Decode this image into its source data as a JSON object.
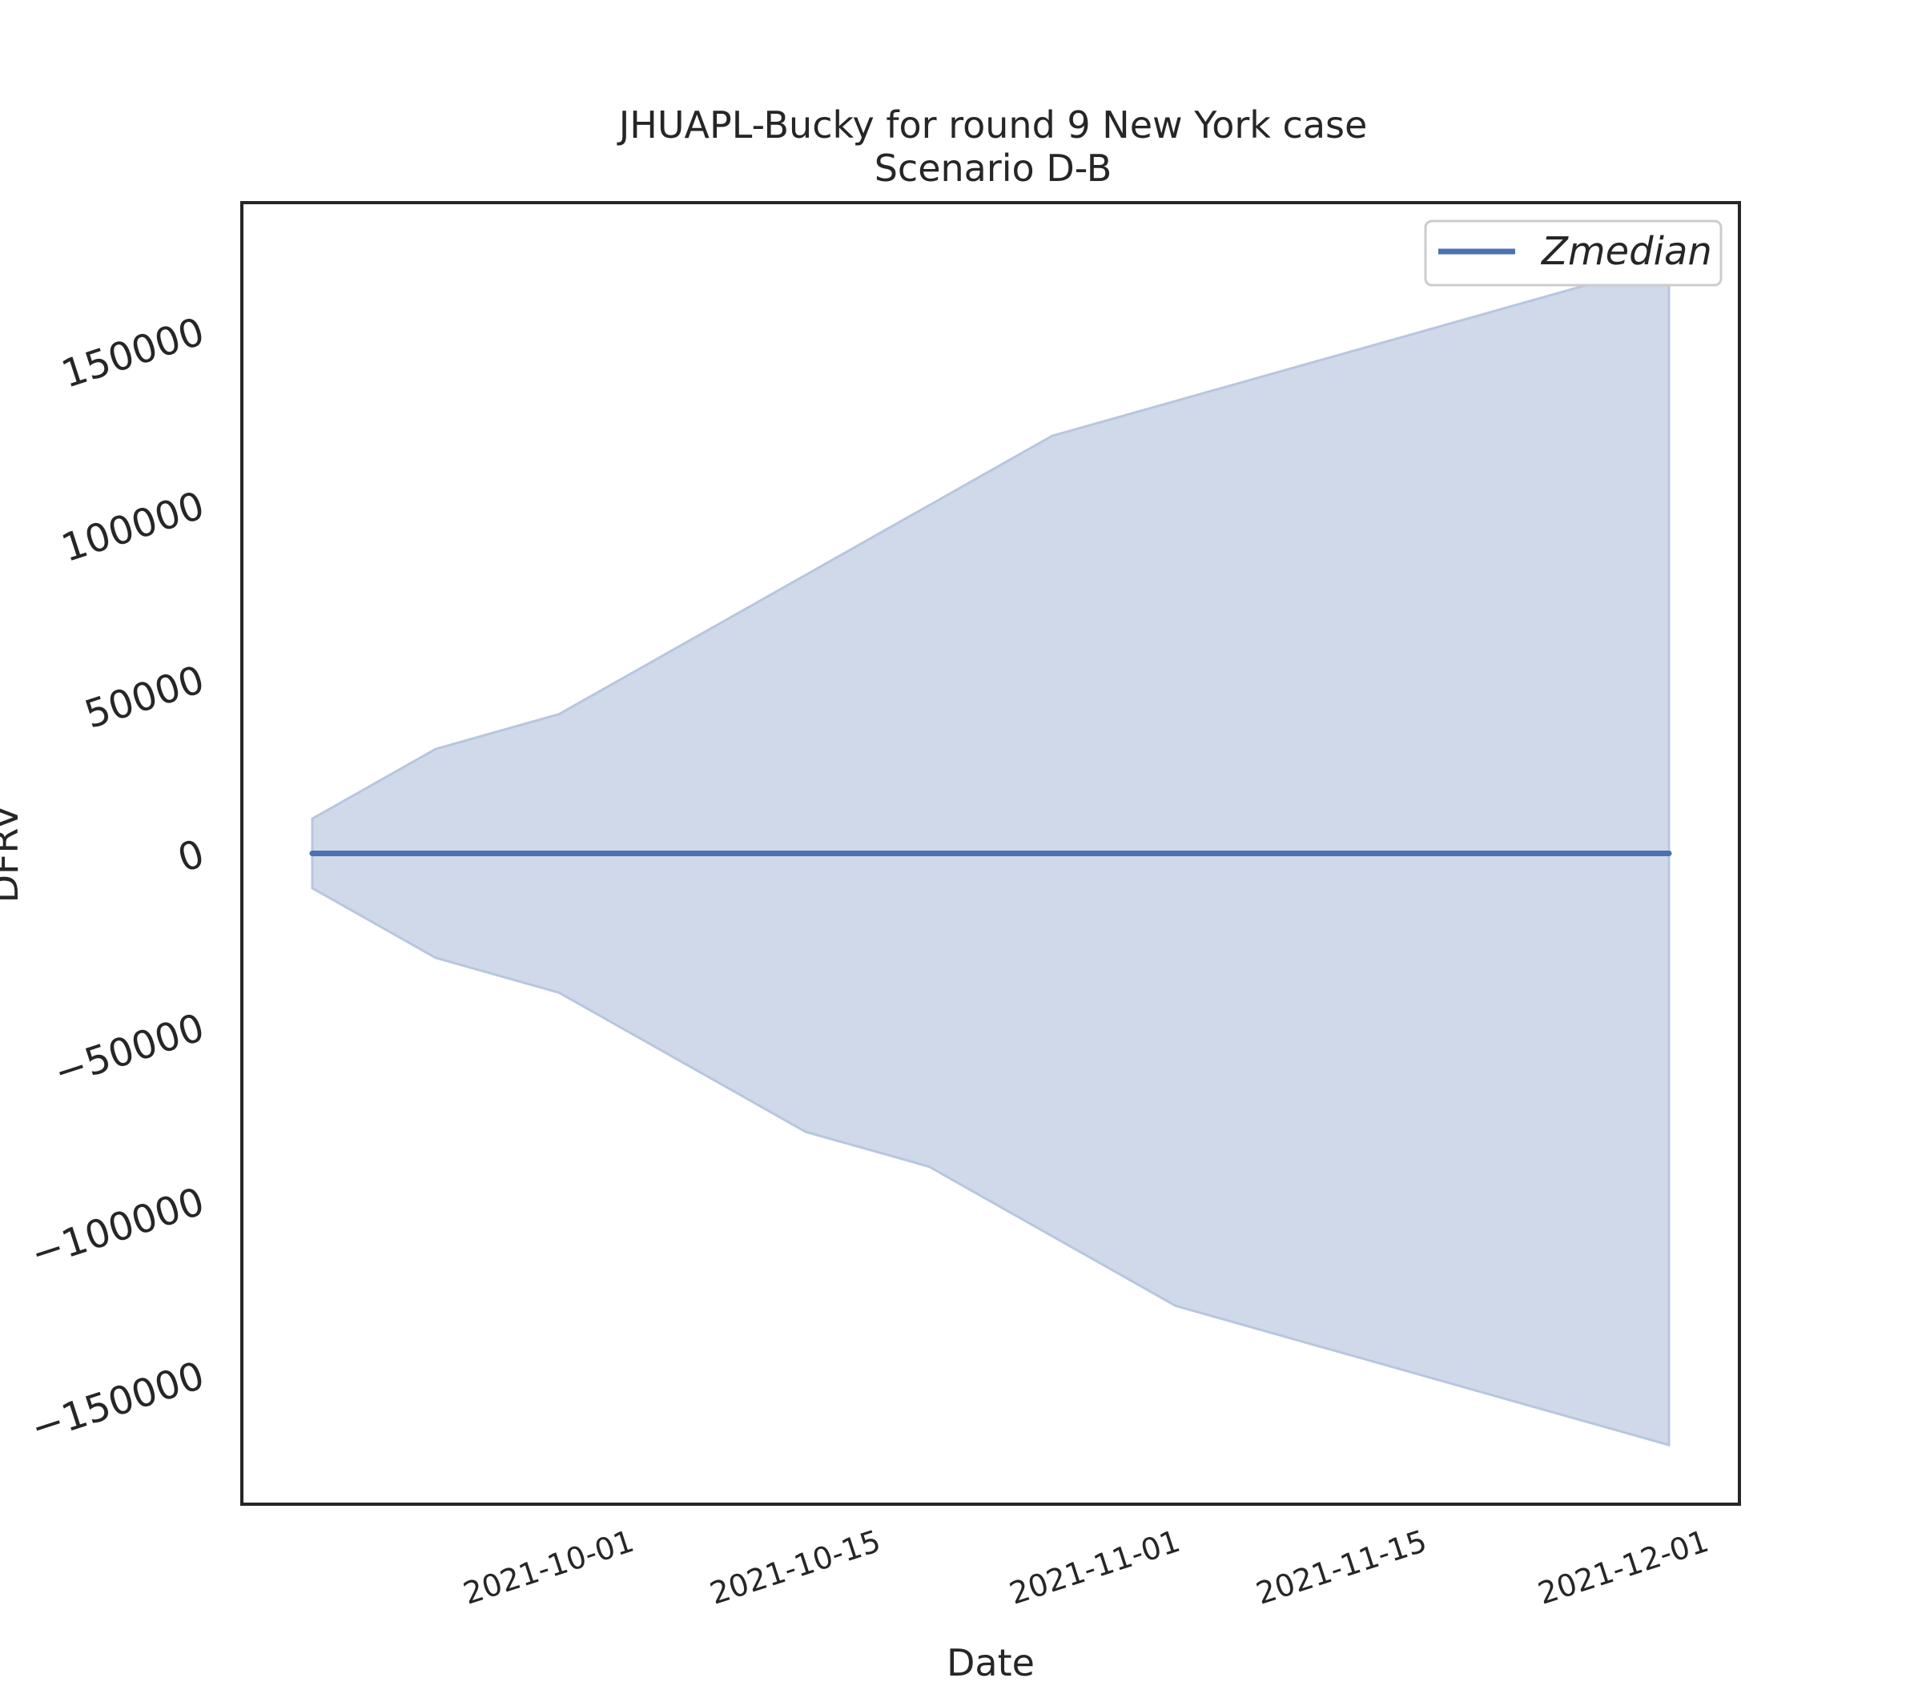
{
  "chart_data": {
    "type": "area",
    "title": "JHUAPL-Bucky for round 9 New York case",
    "subtitle": "Scenario D-B",
    "xlabel": "Date",
    "ylabel": "DFRV",
    "x_tick_labels": [
      "2021-10-01",
      "2021-10-15",
      "2021-11-01",
      "2021-11-15",
      "2021-12-01"
    ],
    "y_tick_labels": [
      "−150000",
      "−100000",
      "−50000",
      "0",
      "50000",
      "100000",
      "150000"
    ],
    "x": [
      "2021-09-18",
      "2021-09-25",
      "2021-10-02",
      "2021-10-09",
      "2021-10-16",
      "2021-10-23",
      "2021-10-30",
      "2021-11-06",
      "2021-11-13",
      "2021-11-20",
      "2021-11-27",
      "2021-12-04"
    ],
    "series": [
      {
        "name": "Zmedian",
        "values": [
          0,
          0,
          0,
          0,
          0,
          0,
          0,
          0,
          0,
          0,
          0,
          0
        ],
        "lower": [
          -10000,
          -30000,
          -40000,
          -60000,
          -80000,
          -90000,
          -110000,
          -130000,
          -140000,
          -150000,
          -160000,
          -170000
        ],
        "upper": [
          10000,
          30000,
          40000,
          60000,
          80000,
          100000,
          120000,
          130000,
          140000,
          150000,
          160000,
          170000
        ]
      }
    ],
    "xlim": [
      "2021-09-14",
      "2021-12-08"
    ],
    "ylim": [
      -187000,
      187000
    ],
    "grid": false,
    "legend": "upper right",
    "colors": {
      "line": "#4c72b0",
      "band": "#d0d9ea",
      "band_edge": "#b8c6df",
      "frame": "#262626"
    }
  }
}
